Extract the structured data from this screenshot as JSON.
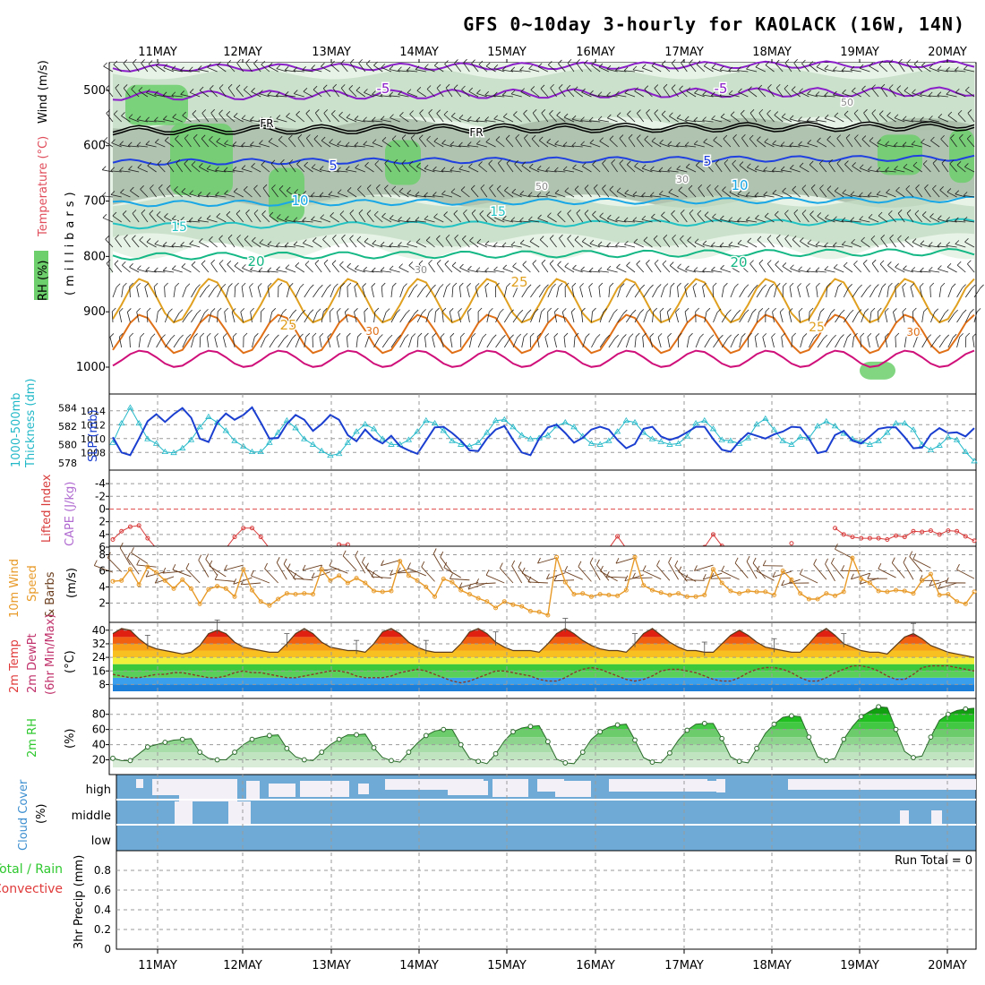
{
  "title": "GFS 0~10day 3-hourly for KAOLACK (16W, 14N)",
  "dates": [
    "11MAY",
    "12MAY",
    "13MAY",
    "14MAY",
    "15MAY",
    "16MAY",
    "17MAY",
    "18MAY",
    "19MAY",
    "20MAY"
  ],
  "colors": {
    "rh_light": "#e6f3e6",
    "rh_mid": "#c4dcc4",
    "rh_dark": "#a3b7a3",
    "rh_green": "#6ccf6c",
    "rh_bright": "#3ddc3d",
    "temp_minus5": "#8a1ec8",
    "temp_freeze": "#000000",
    "temp_5": "#2040e0",
    "temp_10": "#19a7e6",
    "temp_15": "#22c2c2",
    "temp_20": "#15b885",
    "temp_25": "#e0a020",
    "temp_30": "#e07018",
    "temp_35": "#d0107a",
    "slp": "#1a3ed0",
    "thickness": "#22b8c8",
    "lifted": "#d83a3a",
    "wind": "#e89a28",
    "barb": "#6b3e1e",
    "cloud": "#6fa9d6",
    "cloud_gap": "#f4f0f8",
    "rh2m": "#2ec82e"
  },
  "panels": {
    "upper": {
      "label_rh": "RH (%)",
      "label_temp": "Temperature (°C)",
      "label_wind": "Wind (m/s)",
      "label_units": "(millibars)",
      "y_ticks": [
        "500",
        "600",
        "700",
        "800",
        "900",
        "1000"
      ],
      "contour_labels": [
        "-5",
        "-5",
        "FR",
        "FR",
        "5",
        "5",
        "10",
        "10",
        "15",
        "15",
        "20",
        "20",
        "25",
        "25",
        "25",
        "30",
        "30",
        "50",
        "50",
        "30",
        "30"
      ]
    },
    "slp": {
      "label_thick": "1000-500mb",
      "label_thick2": "Thickness (dm)",
      "label_slp": "SLP (mb)",
      "left_ticks": [
        "584",
        "582",
        "580",
        "578"
      ],
      "right_ticks": [
        "1014",
        "1012",
        "1010",
        "1008"
      ]
    },
    "lifted": {
      "label_li": "Lifted Index",
      "label_cape": "CAPE (J/kg)",
      "ticks": [
        "-4",
        "-2",
        "0",
        "2",
        "4",
        "6"
      ]
    },
    "wind10m": {
      "label_a": "10m Wind",
      "label_b": "Speed",
      "label_c": "(m/s)",
      "label_d": "& Barbs",
      "ticks": [
        "8",
        "6",
        "4",
        "2"
      ]
    },
    "temp2m": {
      "label_a": "2m Temp",
      "label_b": "2m DewPt",
      "label_c": "(6hr Min/Max)",
      "label_d": "(°C)",
      "ticks": [
        "40",
        "32",
        "24",
        "16",
        "8"
      ]
    },
    "rh2m": {
      "label_a": "2m RH",
      "label_b": "(%)",
      "ticks": [
        "80",
        "60",
        "40",
        "20"
      ]
    },
    "cloud": {
      "label_a": "Cloud Cover",
      "label_b": "(%)",
      "levels": [
        "high",
        "middle",
        "low"
      ]
    },
    "precip": {
      "label_a": "Total / Rain",
      "label_b": "Convective",
      "label_c": "3hr Precip (mm)",
      "run_total": "Run Total = 0",
      "ticks": [
        "0.8",
        "0.6",
        "0.4",
        "0.2",
        "0"
      ]
    }
  },
  "chart_data": [
    {
      "type": "line",
      "title": "SLP (mb)",
      "series": [
        {
          "name": "SLP (mb)",
          "values": [
            1010.2,
            1008.0,
            1007.6,
            1010.0,
            1012.5,
            1013.5,
            1012.4,
            1013.5,
            1014.4,
            1013.0,
            1010.0,
            1009.5,
            1012.3,
            1013.6,
            1012.7,
            1013.4,
            1014.5,
            1012.3,
            1010.0,
            1010.1,
            1012.1,
            1013.4,
            1012.7,
            1011.1,
            1012.1,
            1013.4,
            1012.7,
            1010.5,
            1009.6,
            1011.3,
            1010.0,
            1009.3,
            1010.4,
            1008.9,
            1008.3,
            1007.8,
            1009.7,
            1011.6,
            1011.7,
            1010.8,
            1009.7,
            1008.3,
            1008.2,
            1010.0,
            1011.3,
            1011.8,
            1009.8,
            1008.0,
            1007.6,
            1010.0,
            1011.6,
            1012.0,
            1010.8,
            1009.4,
            1010.1,
            1011.3,
            1011.7,
            1011.3,
            1009.8,
            1008.6,
            1009.2,
            1011.4,
            1011.7,
            1010.3,
            1009.8,
            1010.2,
            1010.9,
            1011.7,
            1011.7,
            1009.9,
            1008.4,
            1008.1,
            1009.6,
            1010.8,
            1010.4,
            1010.0,
            1010.6,
            1011.0,
            1011.7,
            1011.6,
            1010.0,
            1007.9,
            1008.2,
            1010.5,
            1011.1,
            1009.7,
            1009.3,
            1010.3,
            1011.4,
            1011.6,
            1011.6,
            1010.2,
            1008.6,
            1008.7,
            1010.6,
            1011.5,
            1010.8,
            1010.9,
            1010.3,
            1011.5
          ]
        }
      ]
    },
    {
      "type": "line",
      "title": "1000-500mb Thickness (dm)",
      "series": [
        {
          "name": "1000-500mb Thickness (dm)",
          "values": [
            580.2,
            582.3,
            584.0,
            582.3,
            580.6,
            580.1,
            579.2,
            579.1,
            579.6,
            580.5,
            581.9,
            583.0,
            582.4,
            581.5,
            580.4,
            579.8,
            579.2,
            579.2,
            580.2,
            581.3,
            582.6,
            581.8,
            580.6,
            580.0,
            579.3,
            578.8,
            579.0,
            580.2,
            581.4,
            582.2,
            581.7,
            580.6,
            580.0,
            580.0,
            580.5,
            581.4,
            582.6,
            582.3,
            581.5,
            580.4,
            580.0,
            579.8,
            580.2,
            581.3,
            582.6,
            582.7,
            581.9,
            581.0,
            580.6,
            580.7,
            581.0,
            582.0,
            582.4,
            581.9,
            580.9,
            580.1,
            580.0,
            580.4,
            581.4,
            582.6,
            582.4,
            581.3,
            580.6,
            580.3,
            580.0,
            580.1,
            580.9,
            582.3,
            582.6,
            581.7,
            580.5,
            580.4,
            580.1,
            580.7,
            582.2,
            582.8,
            581.6,
            580.4,
            580.0,
            580.8,
            580.7,
            582.0,
            582.5,
            582.0,
            581.2,
            580.6,
            580.3,
            580.0,
            580.4,
            581.3,
            582.3,
            582.3,
            581.6,
            580.0,
            579.4,
            579.9,
            580.8,
            580.5,
            579.2,
            578.2
          ]
        }
      ]
    },
    {
      "type": "line",
      "title": "Lifted Index",
      "series": [
        {
          "name": "Lifted Index",
          "values": [
            4.8,
            3.5,
            2.8,
            2.6,
            4.6,
            6.2,
            7,
            7,
            7,
            7,
            7,
            7,
            7,
            6.2,
            4.4,
            3.0,
            3.0,
            4.4,
            6.2,
            7,
            7,
            7,
            7,
            7,
            7,
            7,
            5.6,
            5.6,
            7,
            7,
            7,
            7,
            7,
            7,
            7,
            7,
            7,
            7,
            7,
            7,
            7,
            7,
            6.6,
            6.2,
            7,
            7,
            7,
            7,
            7,
            7,
            7,
            7,
            7,
            7,
            7,
            7,
            7,
            6.2,
            4.3,
            6.2,
            7,
            7,
            7,
            7,
            7,
            7,
            7,
            7,
            6.0,
            4.0,
            5.8,
            7,
            7,
            7,
            7,
            7,
            7,
            7,
            5.4,
            7,
            7,
            7,
            7,
            3.0,
            4.0,
            4.4,
            4.6,
            4.6,
            4.6,
            4.8,
            4.2,
            4.4,
            3.5,
            3.6,
            3.4,
            4.0,
            3.4,
            3.5,
            4.3,
            5.0
          ]
        }
      ]
    },
    {
      "type": "line",
      "title": "10m Wind Speed (m/s)",
      "series": [
        {
          "name": "10m Wind Speed",
          "values": [
            4.7,
            4.8,
            6.2,
            4.3,
            6.5,
            5.8,
            4.8,
            3.8,
            4.9,
            3.8,
            1.9,
            3.7,
            4.1,
            3.8,
            2.8,
            6.2,
            3.6,
            2.2,
            1.7,
            2.5,
            3.2,
            3.1,
            3.2,
            3.1,
            6.2,
            4.8,
            5.4,
            4.5,
            5.1,
            4.5,
            3.5,
            3.4,
            3.5,
            7.2,
            5.4,
            4.8,
            4.0,
            2.8,
            5.0,
            4.6,
            3.6,
            3.1,
            2.6,
            2.2,
            1.4,
            2.2,
            1.8,
            1.6,
            1.0,
            0.9,
            0.5,
            7.7,
            4.6,
            3.1,
            3.2,
            2.8,
            3.1,
            3.0,
            2.9,
            3.6,
            7.7,
            4.2,
            3.6,
            3.3,
            3.0,
            3.2,
            2.8,
            2.8,
            3.0,
            6.2,
            4.5,
            3.5,
            3.2,
            3.5,
            3.4,
            3.4,
            3.0,
            6.0,
            4.9,
            3.2,
            2.5,
            2.5,
            3.2,
            2.9,
            3.4,
            7.6,
            5.0,
            4.5,
            3.5,
            3.4,
            3.6,
            3.5,
            3.2,
            4.8,
            5.6,
            3.0,
            3.1,
            2.2,
            1.9,
            3.4
          ]
        }
      ]
    },
    {
      "type": "line",
      "title": "2m Temp (°C)",
      "series": [
        {
          "name": "2m Temp",
          "values": [
            38,
            41,
            40,
            35,
            31,
            29,
            28,
            27,
            26,
            27,
            31,
            38,
            40,
            38,
            33,
            30,
            29,
            28,
            27,
            27,
            32,
            38,
            41,
            38,
            33,
            30,
            29,
            28,
            28,
            27,
            32,
            39,
            41,
            38,
            33,
            30,
            28,
            27,
            27,
            27,
            32,
            39,
            41,
            38,
            33,
            30,
            28,
            28,
            28,
            27,
            32,
            38,
            41,
            38,
            34,
            31,
            29,
            28,
            28,
            27,
            32,
            38,
            41,
            37,
            33,
            30,
            28,
            28,
            27,
            27,
            32,
            37,
            40,
            37,
            33,
            30,
            29,
            28,
            27,
            27,
            32,
            38,
            41,
            37,
            32,
            30,
            28,
            27,
            27,
            26,
            31,
            36,
            38,
            35,
            31,
            29,
            27,
            26,
            25,
            24
          ]
        },
        {
          "name": "2m DewPt",
          "values": [
            14,
            13,
            12,
            12,
            13,
            14,
            14,
            15,
            15,
            14,
            13,
            12,
            12,
            13,
            15,
            16,
            15,
            15,
            14,
            13,
            12,
            12,
            13,
            14,
            15,
            16,
            16,
            15,
            13,
            12,
            12,
            12,
            13,
            15,
            16,
            17,
            16,
            14,
            12,
            10,
            9,
            10,
            12,
            14,
            16,
            16,
            15,
            14,
            13,
            11,
            10,
            10,
            12,
            15,
            17,
            18,
            17,
            15,
            13,
            11,
            10,
            11,
            13,
            16,
            17,
            17,
            16,
            15,
            13,
            11,
            10,
            10,
            12,
            15,
            17,
            18,
            18,
            17,
            15,
            12,
            10,
            10,
            12,
            15,
            17,
            19,
            19,
            18,
            16,
            13,
            11,
            11,
            14,
            18,
            19,
            19,
            19,
            18,
            17,
            16
          ]
        }
      ]
    },
    {
      "type": "area",
      "title": "2m RH (%)",
      "series": [
        {
          "name": "2m RH",
          "values": [
            22,
            19,
            19,
            28,
            37,
            40,
            43,
            46,
            47,
            48,
            30,
            22,
            20,
            20,
            30,
            40,
            47,
            50,
            52,
            53,
            35,
            24,
            20,
            19,
            30,
            40,
            47,
            53,
            53,
            54,
            36,
            23,
            19,
            17,
            30,
            42,
            52,
            58,
            60,
            60,
            40,
            22,
            18,
            15,
            28,
            45,
            57,
            62,
            64,
            65,
            44,
            21,
            16,
            15,
            30,
            47,
            57,
            63,
            66,
            67,
            46,
            23,
            17,
            16,
            29,
            46,
            59,
            67,
            68,
            68,
            48,
            24,
            18,
            16,
            35,
            55,
            67,
            76,
            78,
            77,
            50,
            24,
            19,
            22,
            47,
            64,
            77,
            84,
            90,
            89,
            60,
            31,
            23,
            25,
            50,
            72,
            80,
            85,
            87,
            88
          ]
        }
      ]
    },
    {
      "type": "bar",
      "title": "3hr Precip (mm)",
      "series": [
        {
          "name": "Total / Rain",
          "values": [
            0,
            0,
            0,
            0,
            0,
            0,
            0,
            0,
            0,
            0
          ]
        },
        {
          "name": "Convective",
          "values": [
            0,
            0,
            0,
            0,
            0,
            0,
            0,
            0,
            0,
            0
          ]
        }
      ],
      "categories": [
        "11MAY",
        "12MAY",
        "13MAY",
        "14MAY",
        "15MAY",
        "16MAY",
        "17MAY",
        "18MAY",
        "19MAY",
        "20MAY"
      ],
      "ylim": [
        0,
        1
      ]
    }
  ]
}
